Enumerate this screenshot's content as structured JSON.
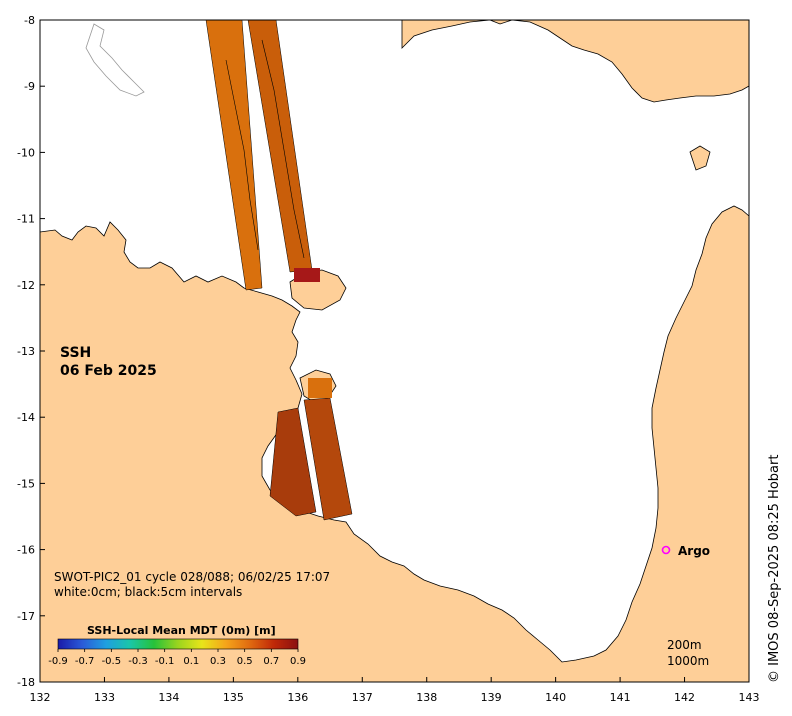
{
  "panel": {
    "label": "SSH",
    "date": "06 Feb 2025",
    "source": "SWOT-PIC2_01 cycle 028/088; 06/02/25 17:07",
    "contour_note": "white:0cm; black:5cm intervals",
    "credit": "© IMOS 08-Sep-2025 08:25 Hobart"
  },
  "axes": {
    "x_ticks": [
      "132",
      "133",
      "134",
      "135",
      "136",
      "137",
      "138",
      "139",
      "140",
      "141",
      "142",
      "143"
    ],
    "y_ticks": [
      "-8",
      "-9",
      "-10",
      "-11",
      "-12",
      "-13",
      "-14",
      "-15",
      "-16",
      "-17",
      "-18"
    ],
    "xlim": [
      132,
      143
    ],
    "ylim": [
      -18,
      -8
    ]
  },
  "colorbar": {
    "title": "SSH-Local Mean MDT (0m) [m]",
    "ticks": [
      "-0.9",
      "-0.7",
      "-0.5",
      "-0.3",
      "-0.1",
      "0.1",
      "0.3",
      "0.5",
      "0.7",
      "0.9"
    ],
    "range": [
      -0.9,
      0.9
    ],
    "colors": [
      "#1a1aa8",
      "#2a5ad8",
      "#1f9fe0",
      "#19c6a8",
      "#27c23a",
      "#9bd41e",
      "#e8e41a",
      "#f5a41a",
      "#e06a10",
      "#c02808",
      "#8a1010"
    ]
  },
  "argo": {
    "label": "Argo",
    "lon": 141.7,
    "lat": -16.0,
    "color": "#ff00ff"
  },
  "depth_legend": {
    "contour_200": "200m",
    "contour_1000": "1000m"
  },
  "colors": {
    "land": "#fecf98",
    "water": "#ffffff",
    "ssh_fill": "#d46a0a"
  }
}
